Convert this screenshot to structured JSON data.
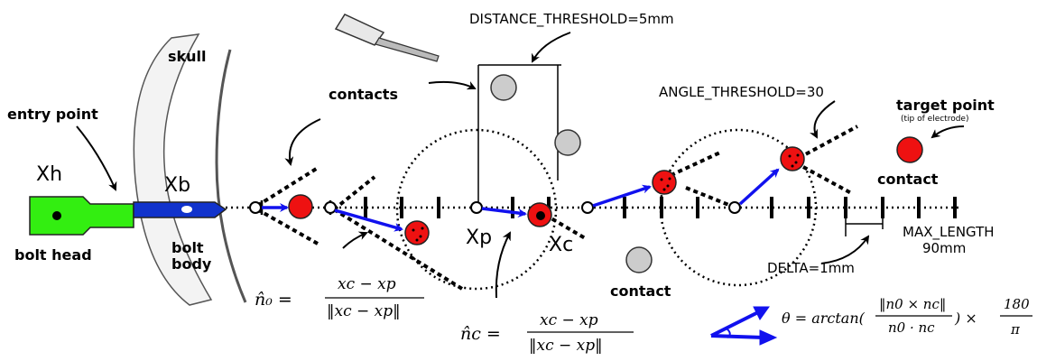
{
  "labels": {
    "skull": "skull",
    "entry_point": "entry point",
    "xh": "Xh",
    "xb": "Xb",
    "bolt_head": "bolt head",
    "bolt_body_1": "bolt",
    "bolt_body_2": "body",
    "contacts": "contacts",
    "distance_threshold": "DISTANCE_THRESHOLD=5mm",
    "angle_threshold": "ANGLE_THRESHOLD=30",
    "target_point": "target point",
    "target_point_sub": "(tip of electrode)",
    "contact_right": "contact",
    "contact_bottom": "contact",
    "xp": "Xp",
    "xc": "Xc",
    "max_length_1": "MAX_LENGTH",
    "max_length_2": "90mm",
    "delta": "DELTA=1mm"
  },
  "formulas": {
    "n0_lhs": "n̂₀ =",
    "n0_num": "xc − xp",
    "n0_den": "‖xc − xp‖",
    "nc_lhs": "n̂c =",
    "nc_num": "xc − xp",
    "nc_den": "‖xc − xp‖",
    "theta_lhs": "θ = arctan(",
    "theta_num": "‖n0 × nc‖",
    "theta_den": "n0 · nc",
    "theta_mid": ") ×",
    "theta_180": "180",
    "theta_pi": "π"
  },
  "colors": {
    "bolt_head": "#33ee11",
    "bolt_body": "#1133cc",
    "contact_red": "#ee1111",
    "contact_gray": "#cccccc",
    "vector_blue": "#1111ee",
    "skull_fill": "#f3f3f3"
  }
}
